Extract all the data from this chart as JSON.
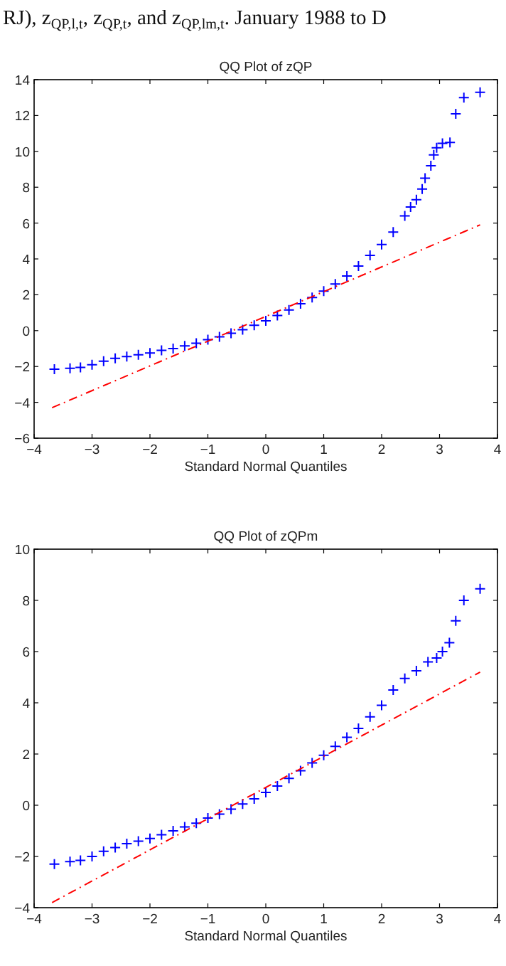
{
  "chart_data": [
    {
      "type": "scatter",
      "title": "QQ Plot of zQP",
      "xlabel": "Standard Normal Quantiles",
      "annotations": [
        "RJ), z$_{QP,l,t}$, z$_{QP,t}$, and z$_{QP,lm,t}$. January 1988 to D"
      ],
      "xlim": [
        -4,
        4
      ],
      "ylim": [
        -6,
        14
      ],
      "xticks": [
        -4,
        -3,
        -2,
        -1,
        0,
        1,
        2,
        3,
        4
      ],
      "yticks": [
        -6,
        -4,
        -2,
        0,
        2,
        4,
        6,
        8,
        10,
        12,
        14
      ],
      "grid": false,
      "series": [
        {
          "color": "#0000ff",
          "marker": "cross",
          "x": [
            -3.65,
            -3.38,
            -3.2,
            -3.0,
            -2.8,
            -2.6,
            -2.4,
            -2.2,
            -2.0,
            -1.8,
            -1.6,
            -1.4,
            -1.2,
            -1.0,
            -0.8,
            -0.6,
            -0.4,
            -0.2,
            0,
            0.2,
            0.4,
            0.6,
            0.8,
            1.0,
            1.2,
            1.4,
            1.6,
            1.8,
            2.0,
            2.2,
            2.4,
            2.5,
            2.6,
            2.7,
            2.75,
            2.85,
            2.9,
            2.95,
            3.05,
            3.18,
            3.28,
            3.42,
            3.7
          ],
          "values": [
            -2.15,
            -2.1,
            -2.05,
            -1.9,
            -1.7,
            -1.55,
            -1.45,
            -1.35,
            -1.25,
            -1.1,
            -1.0,
            -0.85,
            -0.7,
            -0.5,
            -0.35,
            -0.15,
            0.05,
            0.3,
            0.55,
            0.85,
            1.15,
            1.5,
            1.85,
            2.2,
            2.6,
            3.05,
            3.6,
            4.2,
            4.8,
            5.5,
            6.4,
            6.9,
            7.3,
            7.9,
            8.5,
            9.2,
            9.8,
            10.2,
            10.45,
            10.5,
            12.1,
            13.0,
            13.3
          ]
        },
        {
          "type": "line",
          "color": "#ff0000",
          "marker": "none",
          "line_style": "dashed",
          "x": [
            -3.69,
            3.7
          ],
          "values": [
            -4.3,
            5.9
          ]
        }
      ]
    },
    {
      "type": "scatter",
      "title": "QQ Plot of zQPm",
      "xlabel": "Standard Normal Quantiles",
      "xlim": [
        -4,
        4
      ],
      "ylim": [
        -4,
        10
      ],
      "xticks": [
        -4,
        -3,
        -2,
        -1,
        0,
        1,
        2,
        3,
        4
      ],
      "yticks": [
        -4,
        -2,
        0,
        2,
        4,
        6,
        8,
        10
      ],
      "grid": false,
      "series": [
        {
          "color": "#0000ff",
          "marker": "cross",
          "x": [
            -3.65,
            -3.38,
            -3.2,
            -3.0,
            -2.8,
            -2.6,
            -2.4,
            -2.2,
            -2.0,
            -1.8,
            -1.6,
            -1.4,
            -1.2,
            -1.0,
            -0.8,
            -0.6,
            -0.4,
            -0.2,
            0,
            0.2,
            0.4,
            0.6,
            0.8,
            1.0,
            1.2,
            1.4,
            1.6,
            1.8,
            2.0,
            2.2,
            2.4,
            2.6,
            2.8,
            2.95,
            3.05,
            3.17,
            3.28,
            3.42,
            3.7
          ],
          "values": [
            -2.3,
            -2.2,
            -2.15,
            -2.0,
            -1.8,
            -1.65,
            -1.5,
            -1.4,
            -1.3,
            -1.15,
            -1.0,
            -0.85,
            -0.7,
            -0.5,
            -0.35,
            -0.15,
            0.05,
            0.25,
            0.5,
            0.75,
            1.05,
            1.35,
            1.65,
            1.95,
            2.3,
            2.65,
            3.0,
            3.45,
            3.9,
            4.5,
            4.95,
            5.25,
            5.6,
            5.75,
            6.0,
            6.35,
            7.2,
            8.0,
            8.45
          ]
        },
        {
          "type": "line",
          "color": "#ff0000",
          "marker": "none",
          "line_style": "dashed",
          "x": [
            -3.69,
            3.7
          ],
          "values": [
            -3.8,
            5.2
          ]
        }
      ]
    }
  ]
}
